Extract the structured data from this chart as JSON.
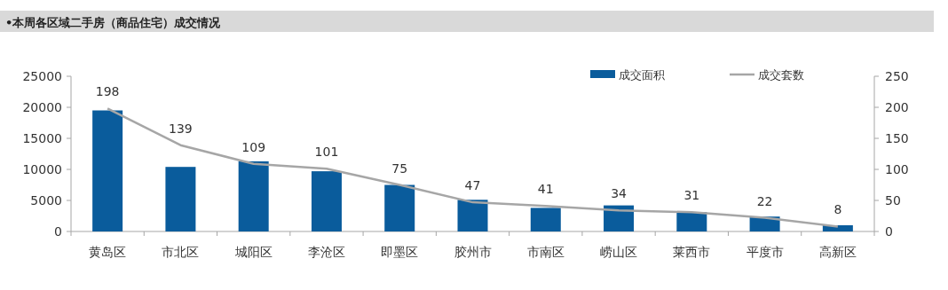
{
  "chart_data": {
    "type": "bar",
    "title": "•本周各区域二手房（商品住宅）成交情况",
    "categories": [
      "黄岛区",
      "市北区",
      "城阳区",
      "李沧区",
      "即墨区",
      "胶州市",
      "市南区",
      "崂山区",
      "莱西市",
      "平度市",
      "高新区"
    ],
    "series": [
      {
        "name": "成交面积",
        "color": "#0a5c9c",
        "values": [
          19500,
          10400,
          11300,
          9700,
          7500,
          5100,
          3800,
          4200,
          3100,
          2400,
          1000
        ]
      },
      {
        "name": "成交套数",
        "type": "line",
        "axis": "y2",
        "color": "#a6a6a6",
        "values": [
          198,
          139,
          109,
          101,
          75,
          47,
          41,
          34,
          31,
          22,
          8
        ],
        "value_labels": [
          "198",
          "139",
          "109",
          "101",
          "75",
          "47",
          "41",
          "34",
          "31",
          "22",
          "8"
        ]
      }
    ],
    "ylim": [
      0,
      25000
    ],
    "yticks": [
      0,
      5000,
      10000,
      15000,
      20000,
      25000
    ],
    "y2lim": [
      0,
      250
    ],
    "y2ticks": [
      0,
      50,
      100,
      150,
      200,
      250
    ],
    "legend": "top right",
    "grid": false
  }
}
